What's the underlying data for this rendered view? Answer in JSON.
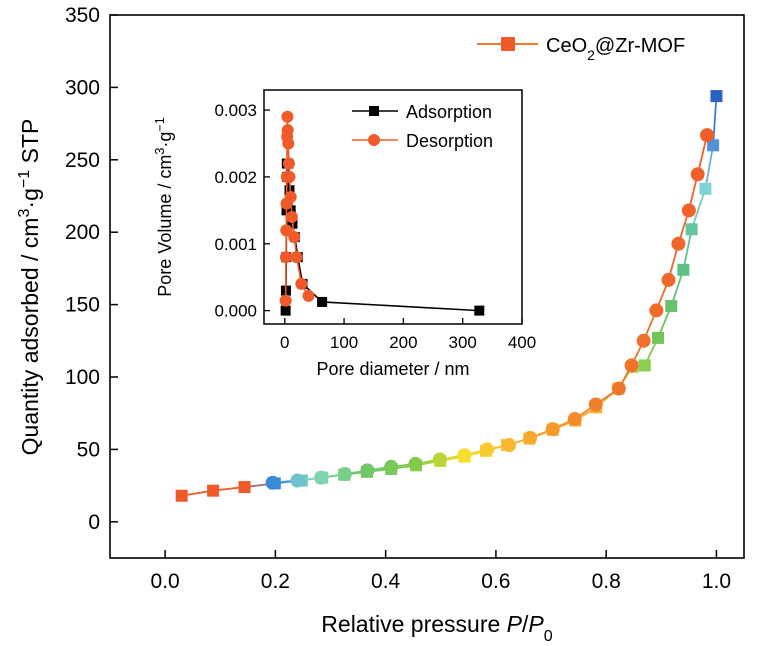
{
  "chart_data": [
    {
      "type": "line",
      "ylabel": "Quantity adsorbed / cm³·g⁻¹ STP",
      "xlabel": "Relative pressure P/P₀",
      "xlim": [
        -0.1,
        1.05
      ],
      "ylim": [
        -25,
        350
      ],
      "xticks": [
        "0.0",
        "0.2",
        "0.4",
        "0.6",
        "0.8",
        "1.0"
      ],
      "yticks": [
        "0",
        "50",
        "100",
        "150",
        "200",
        "250",
        "300",
        "350"
      ],
      "legend": {
        "position": "top-right",
        "label": "CeO₂@Zr-MOF"
      },
      "series": [
        {
          "name": "CeO₂@Zr-MOF",
          "branch": "adsorption",
          "marker": "square",
          "line_color": "#6aba5a",
          "x": [
            0.03,
            0.087,
            0.144,
            0.199,
            0.248,
            0.285,
            0.325,
            0.366,
            0.41,
            0.455,
            0.499,
            0.543,
            0.582,
            0.62,
            0.661,
            0.703,
            0.744,
            0.782,
            0.822,
            0.848,
            0.87,
            0.894,
            0.918,
            0.94,
            0.955,
            0.98,
            0.994,
            1.0
          ],
          "y": [
            18,
            21.5,
            24,
            26.5,
            28.5,
            30.5,
            32.5,
            34.5,
            36.5,
            39,
            42,
            45,
            49,
            53,
            57.5,
            63.5,
            70,
            79,
            92,
            107,
            108,
            127,
            149,
            174,
            202,
            230,
            260,
            294
          ]
        },
        {
          "name": "CeO₂@Zr-MOF",
          "branch": "desorption",
          "marker": "circle",
          "line_color": "#f07a30",
          "x": [
            0.983,
            0.966,
            0.95,
            0.931,
            0.913,
            0.891,
            0.868,
            0.846,
            0.823,
            0.781,
            0.743,
            0.703,
            0.662,
            0.624,
            0.584,
            0.543,
            0.498,
            0.454,
            0.41,
            0.367,
            0.326,
            0.283,
            0.24,
            0.195
          ],
          "y": [
            267,
            240,
            215,
            192,
            167,
            146,
            125,
            108,
            92,
            81,
            71,
            64,
            58,
            53,
            50,
            46,
            43,
            40,
            38,
            35.5,
            33,
            30.5,
            28.5,
            27
          ]
        }
      ]
    },
    {
      "type": "line",
      "ylabel": "Pore Volume / cm³·g⁻¹",
      "xlabel": "Pore diameter  / nm",
      "xlim": [
        -35,
        400
      ],
      "ylim": [
        -0.0002,
        0.0033
      ],
      "xticks": [
        "0",
        "100",
        "200",
        "300",
        "400"
      ],
      "yticks": [
        "0.000",
        "0.001",
        "0.002",
        "0.003"
      ],
      "legend": {
        "position": "top-right"
      },
      "series": [
        {
          "name": "Adsorption",
          "marker": "square",
          "color": "#000000",
          "x": [
            1.5,
            2,
            2.5,
            3,
            3.5,
            4,
            5,
            6,
            8,
            10,
            13,
            17,
            22,
            30,
            63,
            328
          ],
          "y": [
            0.0,
            0.0003,
            0.0008,
            0.0015,
            0.0022,
            0.002,
            0.0016,
            0.0022,
            0.0018,
            0.0015,
            0.0013,
            0.0011,
            0.0008,
            0.0004,
            0.00013,
            0.0
          ]
        },
        {
          "name": "Desorption",
          "marker": "circle",
          "color": "#f05a28",
          "x": [
            1.5,
            2,
            2.5,
            3,
            3.5,
            4,
            4.5,
            5,
            6,
            7,
            8,
            10,
            12,
            16,
            20,
            28,
            40
          ],
          "y": [
            0.00015,
            0.0008,
            0.0012,
            0.0016,
            0.002,
            0.0026,
            0.0029,
            0.0027,
            0.0025,
            0.0022,
            0.002,
            0.0017,
            0.0014,
            0.0011,
            0.0008,
            0.0004,
            0.00022
          ]
        }
      ]
    }
  ]
}
